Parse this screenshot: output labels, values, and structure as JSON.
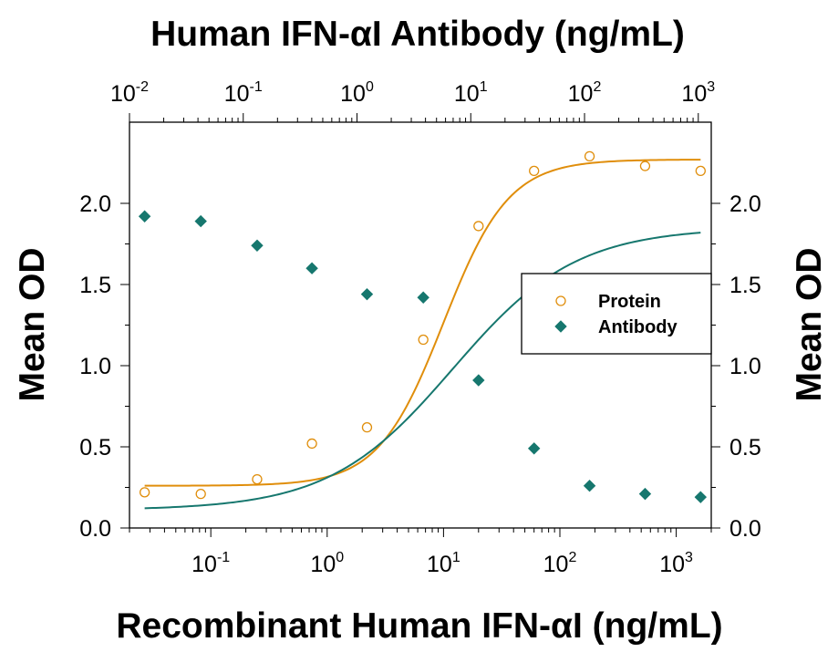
{
  "chart_data": {
    "type": "scatter",
    "title": "Human IFN-αI Antibody (ng/mL)",
    "xlabel": "Recombinant Human IFN-αI (ng/mL)",
    "ylabel": "Mean OD",
    "ylabel_right": "Mean OD",
    "x_scale": "log",
    "xlim": [
      0.02,
      2000
    ],
    "ylim": [
      0,
      2.5
    ],
    "x_ticks": [
      0.1,
      1,
      10,
      100,
      1000
    ],
    "x_tick_labels": [
      {
        "base": "10",
        "exp": "-1"
      },
      {
        "base": "10",
        "exp": "0"
      },
      {
        "base": "10",
        "exp": "1"
      },
      {
        "base": "10",
        "exp": "2"
      },
      {
        "base": "10",
        "exp": "3"
      }
    ],
    "top_x_scale": "log",
    "top_xlim": [
      0.01,
      1300
    ],
    "top_x_ticks": [
      0.01,
      0.1,
      1,
      10,
      100,
      1000
    ],
    "top_x_tick_labels": [
      {
        "base": "10",
        "exp": "-2"
      },
      {
        "base": "10",
        "exp": "-1"
      },
      {
        "base": "10",
        "exp": "0"
      },
      {
        "base": "10",
        "exp": "1"
      },
      {
        "base": "10",
        "exp": "2"
      },
      {
        "base": "10",
        "exp": "3"
      }
    ],
    "y_ticks": [
      0.0,
      0.5,
      1.0,
      1.5,
      2.0
    ],
    "y_tick_labels": [
      "0.0",
      "0.5",
      "1.0",
      "1.5",
      "2.0"
    ],
    "grid": false,
    "legend_position": "right-middle",
    "series": [
      {
        "name": "Protein",
        "marker": "open-circle",
        "color": "#E08E0B",
        "x": [
          0.027,
          0.082,
          0.25,
          0.74,
          2.2,
          6.7,
          20,
          60,
          180,
          540,
          1620
        ],
        "y": [
          0.22,
          0.21,
          0.3,
          0.52,
          0.62,
          1.16,
          1.86,
          2.2,
          2.29,
          2.23,
          2.2
        ],
        "fit": {
          "model": "4PL",
          "bottom": 0.26,
          "top": 2.27,
          "ec50": 10,
          "hill": 1.55
        }
      },
      {
        "name": "Antibody",
        "marker": "filled-diamond",
        "color": "#16776E",
        "x": [
          0.027,
          0.082,
          0.25,
          0.74,
          2.2,
          6.7,
          20,
          60,
          180,
          540,
          1620
        ],
        "y": [
          1.92,
          1.89,
          1.74,
          1.6,
          1.44,
          1.42,
          0.91,
          0.49,
          0.26,
          0.21,
          0.19
        ],
        "fit": {
          "model": "4PL",
          "bottom": 0.11,
          "top": 1.85,
          "ec50": 12,
          "hill": 0.82
        }
      }
    ]
  }
}
